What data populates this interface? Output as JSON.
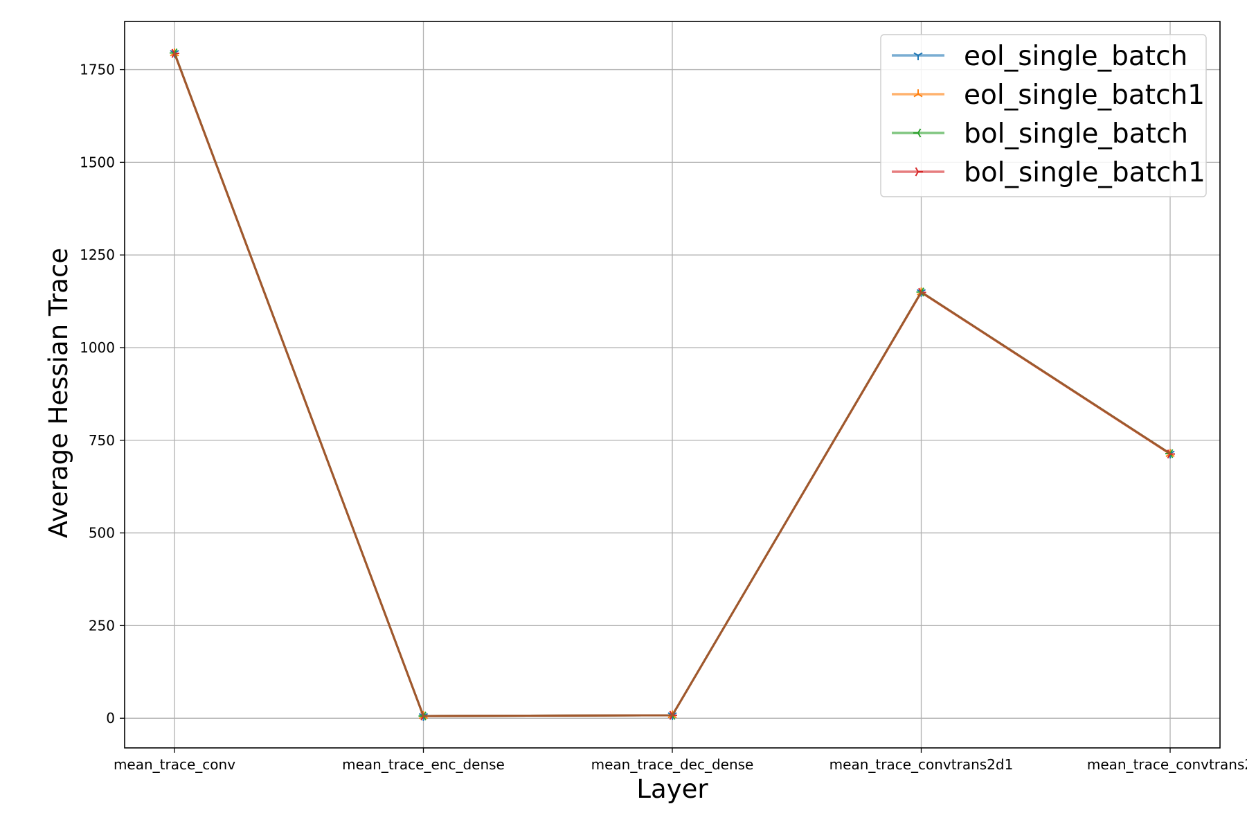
{
  "chart_data": {
    "type": "line",
    "title": "",
    "xlabel": "Layer",
    "ylabel": "Average Hessian Trace",
    "categories": [
      "mean_trace_conv",
      "mean_trace_enc_dense",
      "mean_trace_dec_dense",
      "mean_trace_convtrans2d1",
      "mean_trace_convtrans2"
    ],
    "ylim": [
      -80,
      1880
    ],
    "yticks": [
      0,
      250,
      500,
      750,
      1000,
      1250,
      1500,
      1750
    ],
    "grid": true,
    "legend_position": "top-right",
    "series": [
      {
        "name": "eol_single_batch",
        "color": "#1f77b4",
        "marker": "tri-down",
        "values": [
          1795,
          6,
          8,
          1150,
          714
        ]
      },
      {
        "name": "eol_single_batch1",
        "color": "#ff7f0e",
        "marker": "tri-up",
        "values": [
          1794,
          6,
          8,
          1149,
          713
        ]
      },
      {
        "name": "bol_single_batch",
        "color": "#2ca02c",
        "marker": "tri-left",
        "values": [
          1795,
          6,
          8,
          1150,
          714
        ]
      },
      {
        "name": "bol_single_batch1",
        "color": "#d62728",
        "marker": "tri-right",
        "values": [
          1794,
          6,
          8,
          1149,
          713
        ]
      }
    ],
    "overlay_line_color": "#a0582d"
  }
}
